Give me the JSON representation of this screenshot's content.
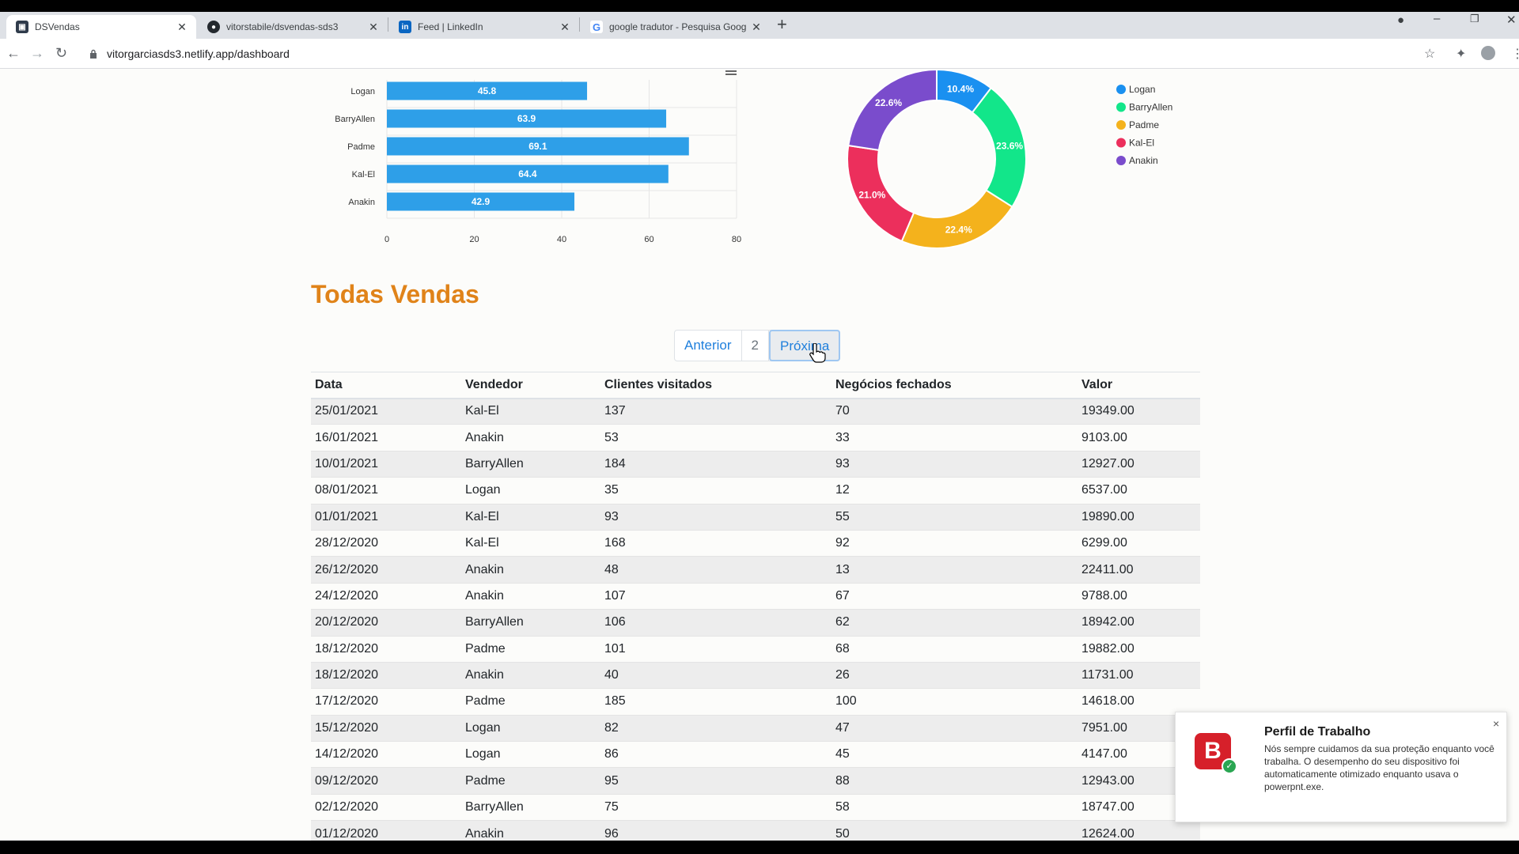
{
  "browser": {
    "tabs": [
      {
        "title": "DSVendas",
        "icon": "dsvendas-icon"
      },
      {
        "title": "vitorstabile/dsvendas-sds3",
        "icon": "github-icon"
      },
      {
        "title": "Feed | LinkedIn",
        "icon": "linkedin-icon"
      },
      {
        "title": "google tradutor - Pesquisa Goog",
        "icon": "google-icon"
      }
    ],
    "url": "vitorgarciasds3.netlify.app/dashboard"
  },
  "chart_data": [
    {
      "type": "bar",
      "orientation": "horizontal",
      "categories": [
        "Logan",
        "BarryAllen",
        "Padme",
        "Kal-El",
        "Anakin"
      ],
      "values": [
        45.8,
        63.9,
        69.1,
        64.4,
        42.9
      ],
      "xlim": [
        0,
        80
      ],
      "xticks": [
        0,
        20,
        40,
        60,
        80
      ],
      "color": "#2e9fe8"
    },
    {
      "type": "pie",
      "donut": true,
      "labels": [
        "Logan",
        "BarryAllen",
        "Padme",
        "Kal-El",
        "Anakin"
      ],
      "values": [
        10.4,
        23.6,
        22.4,
        21.0,
        22.6
      ],
      "value_labels": [
        "10.4%",
        "23.6%",
        "22.4%",
        "21.0%",
        "22.6%"
      ],
      "colors": [
        "#1a90f0",
        "#12e68a",
        "#f4b21c",
        "#ec2f5c",
        "#7a4ccc"
      ],
      "legend_position": "right"
    }
  ],
  "sales": {
    "title": "Todas Vendas",
    "pagination": {
      "prev": "Anterior",
      "page": "2",
      "next": "Próxima"
    },
    "columns": [
      "Data",
      "Vendedor",
      "Clientes visitados",
      "Negócios fechados",
      "Valor"
    ],
    "rows": [
      [
        "25/01/2021",
        "Kal-El",
        "137",
        "70",
        "19349.00"
      ],
      [
        "16/01/2021",
        "Anakin",
        "53",
        "33",
        "9103.00"
      ],
      [
        "10/01/2021",
        "BarryAllen",
        "184",
        "93",
        "12927.00"
      ],
      [
        "08/01/2021",
        "Logan",
        "35",
        "12",
        "6537.00"
      ],
      [
        "01/01/2021",
        "Kal-El",
        "93",
        "55",
        "19890.00"
      ],
      [
        "28/12/2020",
        "Kal-El",
        "168",
        "92",
        "6299.00"
      ],
      [
        "26/12/2020",
        "Anakin",
        "48",
        "13",
        "22411.00"
      ],
      [
        "24/12/2020",
        "Anakin",
        "107",
        "67",
        "9788.00"
      ],
      [
        "20/12/2020",
        "BarryAllen",
        "106",
        "62",
        "18942.00"
      ],
      [
        "18/12/2020",
        "Padme",
        "101",
        "68",
        "19882.00"
      ],
      [
        "18/12/2020",
        "Anakin",
        "40",
        "26",
        "11731.00"
      ],
      [
        "17/12/2020",
        "Padme",
        "185",
        "100",
        "14618.00"
      ],
      [
        "15/12/2020",
        "Logan",
        "82",
        "47",
        "7951.00"
      ],
      [
        "14/12/2020",
        "Logan",
        "86",
        "45",
        "4147.00"
      ],
      [
        "09/12/2020",
        "Padme",
        "95",
        "88",
        "12943.00"
      ],
      [
        "02/12/2020",
        "BarryAllen",
        "75",
        "58",
        "18747.00"
      ],
      [
        "01/12/2020",
        "Anakin",
        "96",
        "50",
        "12624.00"
      ]
    ]
  },
  "toast": {
    "title": "Perfil de Trabalho",
    "body": "Nós sempre cuidamos da sua proteção enquanto você trabalha. O desempenho do seu dispositivo foi automaticamente otimizado enquanto usava o powerpnt.exe.",
    "logo_letter": "B",
    "close": "×"
  }
}
